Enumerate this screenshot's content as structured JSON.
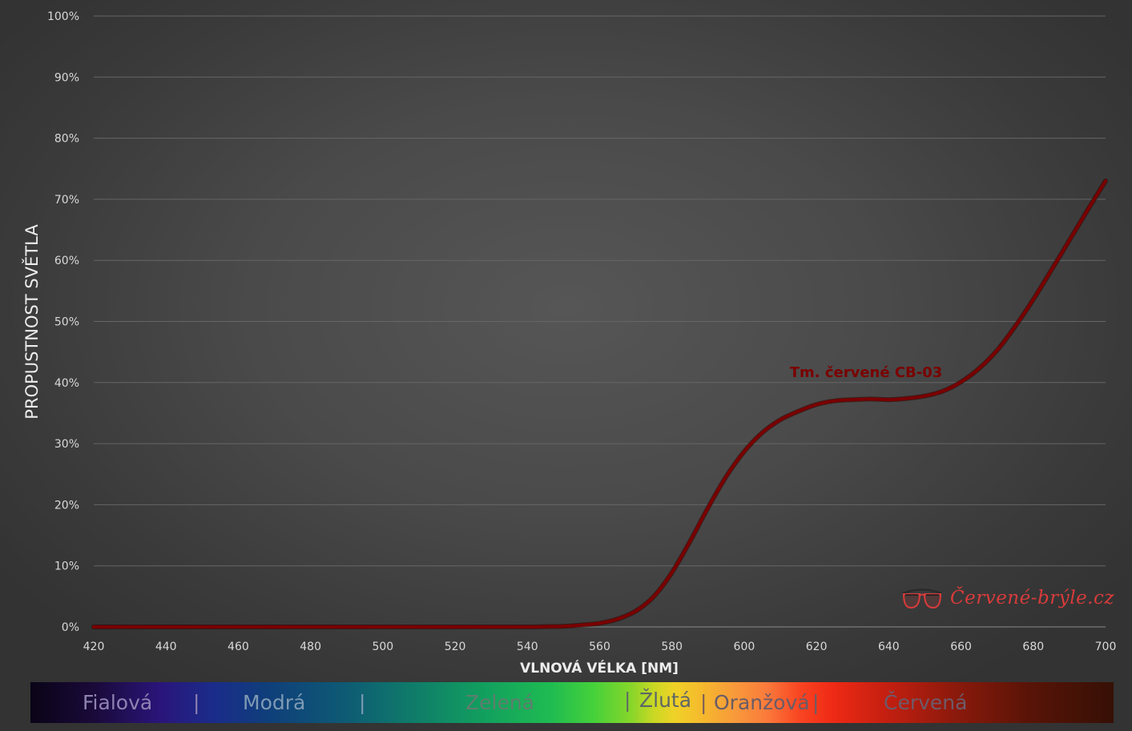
{
  "chart_data": {
    "type": "line",
    "title": "",
    "xlabel": "VLNOVÁ VÉLKA [NM]",
    "ylabel": "PROPUSTNOST SVĚTLA",
    "xlim": [
      420,
      700
    ],
    "ylim": [
      0,
      100
    ],
    "x_ticks": [
      "420",
      "440",
      "460",
      "480",
      "500",
      "520",
      "540",
      "560",
      "580",
      "600",
      "620",
      "640",
      "660",
      "680",
      "700"
    ],
    "y_ticks": [
      "0%",
      "10%",
      "20%",
      "30%",
      "40%",
      "50%",
      "60%",
      "70%",
      "80%",
      "90%",
      "100%"
    ],
    "grid": true,
    "series": [
      {
        "name": "Tm. červené CB-03",
        "color": "#7a0000",
        "x": [
          420,
          440,
          460,
          480,
          500,
          520,
          540,
          545,
          550,
          555,
          560,
          565,
          570,
          575,
          580,
          585,
          590,
          595,
          600,
          605,
          610,
          615,
          620,
          625,
          630,
          635,
          640,
          645,
          650,
          655,
          660,
          665,
          670,
          675,
          680,
          685,
          690,
          695,
          700
        ],
        "y": [
          0,
          0,
          0,
          0,
          0,
          0,
          0,
          0.05,
          0.1,
          0.3,
          0.6,
          1.3,
          2.6,
          5,
          8.9,
          14,
          19.5,
          24.6,
          28.7,
          31.8,
          33.9,
          35.3,
          36.4,
          37,
          37.2,
          37.3,
          37.2,
          37.4,
          37.8,
          38.6,
          40.1,
          42.3,
          45.3,
          49.2,
          53.6,
          58.4,
          63.3,
          68.2,
          73
        ]
      }
    ]
  },
  "spectrum": [
    {
      "text": "Fialová",
      "color": "#8e82b2"
    },
    {
      "text": "|",
      "color": "#8e82b2"
    },
    {
      "text": "Modrá",
      "color": "#7e9ab4"
    },
    {
      "text": "|",
      "color": "#7e9ab4"
    },
    {
      "text": "Zelená",
      "color": "#5e7e6e"
    },
    {
      "text": "|",
      "color": "#5e6a66"
    },
    {
      "text": "Žlutá",
      "color": "#5e6666"
    },
    {
      "text": "|",
      "color": "#7a5a5a"
    },
    {
      "text": "Oranžová",
      "color": "#6a5c66"
    },
    {
      "text": "|",
      "color": "#6a5c66"
    },
    {
      "text": "Červená",
      "color": "#6e5a68"
    }
  ],
  "watermark": {
    "text": "Červené-brýle.cz",
    "icon": "glasses-icon",
    "color": "#d93b3b"
  }
}
